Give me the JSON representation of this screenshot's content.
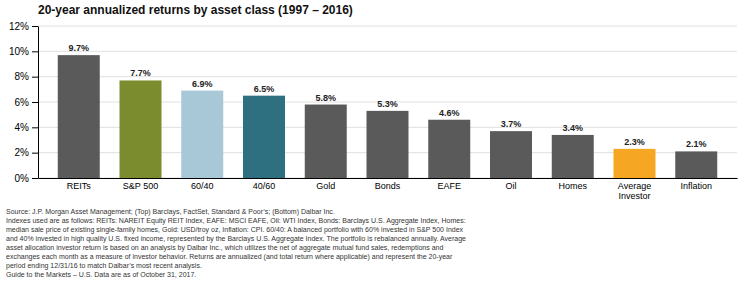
{
  "chart_data": {
    "type": "bar",
    "title": "20-year annualized returns by asset class (1997 – 2016)",
    "categories": [
      "REITs",
      "S&P 500",
      "60/40",
      "40/60",
      "Gold",
      "Bonds",
      "EAFE",
      "Oil",
      "Homes",
      "Average\nInvestor",
      "Inflation"
    ],
    "values": [
      9.7,
      7.7,
      6.9,
      6.5,
      5.8,
      5.3,
      4.6,
      3.7,
      3.4,
      2.3,
      2.1
    ],
    "value_labels": [
      "9.7%",
      "7.7%",
      "6.9%",
      "6.5%",
      "5.8%",
      "5.3%",
      "4.6%",
      "3.7%",
      "3.4%",
      "2.3%",
      "2.1%"
    ],
    "data_labels": true,
    "colors": [
      "#5a5a5a",
      "#7a8c2e",
      "#a8c8d8",
      "#2e7080",
      "#5a5a5a",
      "#5a5a5a",
      "#5a5a5a",
      "#5a5a5a",
      "#5a5a5a",
      "#f5a623",
      "#5a5a5a"
    ],
    "ylim": [
      0,
      12
    ],
    "yticks": [
      {
        "value": 0,
        "label": "0%"
      },
      {
        "value": 2,
        "label": "2%"
      },
      {
        "value": 4,
        "label": "4%"
      },
      {
        "value": 6,
        "label": "6%"
      },
      {
        "value": 8,
        "label": "8%"
      },
      {
        "value": 10,
        "label": "10%"
      },
      {
        "value": 12,
        "label": "12%"
      }
    ],
    "grid": true,
    "annotations": [
      "Source: J.P. Morgan Asset Management; (Top) Barclays, FactSet, Standard & Poor’s; (Bottom) Dalbar Inc.",
      "Indexes used are as follows: REITs: NAREIT Equity REIT Index, EAFE: MSCI EAFE, Oil: WTI Index, Bonds: Barclays U.S. Aggregate Index, Homes:",
      "median sale price of existing single-family homes, Gold: USD/troy oz, Inflation: CPI. 60/40: A balanced portfolio with 60% invested in S&P 500 Index",
      "and 40% invested in high quality U.S. fixed income, represented by the Barclays U.S. Aggregate Index. The portfolio is rebalanced annually. Average",
      "asset allocation investor return is based on an analysis by Dalbar Inc., which utilizes the net of aggregate mutual fund sales, redemptions and",
      "exchanges each month as a measure of investor behavior. Returns are annualized (and total return where applicable) and represent the 20-year",
      "period ending 12/31/16 to match Dalbar’s most recent analysis.",
      "Guide to the Markets – U.S. Data are as of October 31, 2017."
    ]
  }
}
